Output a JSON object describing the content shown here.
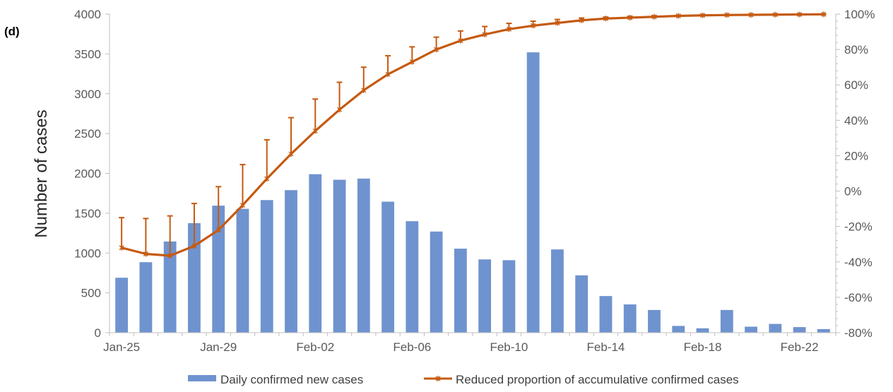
{
  "chart_data": {
    "type": "bar",
    "panel_label": "(d)",
    "title": "",
    "xlabel": "",
    "ylabel": "Number of cases",
    "ylim": [
      0,
      4000
    ],
    "yticks": [
      0,
      500,
      1000,
      1500,
      2000,
      2500,
      3000,
      3500,
      4000
    ],
    "y2lim": [
      -80,
      100
    ],
    "y2ticks": [
      -80,
      -60,
      -40,
      -20,
      0,
      20,
      40,
      60,
      80,
      100
    ],
    "y2tick_labels": [
      "-80%",
      "-60%",
      "-40%",
      "-20%",
      "0%",
      "20%",
      "40%",
      "60%",
      "80%",
      "100%"
    ],
    "categories": [
      "Jan-25",
      "Jan-26",
      "Jan-27",
      "Jan-28",
      "Jan-29",
      "Jan-30",
      "Jan-31",
      "Feb-01",
      "Feb-02",
      "Feb-03",
      "Feb-04",
      "Feb-05",
      "Feb-06",
      "Feb-07",
      "Feb-08",
      "Feb-09",
      "Feb-10",
      "Feb-11",
      "Feb-12",
      "Feb-13",
      "Feb-14",
      "Feb-15",
      "Feb-16",
      "Feb-17",
      "Feb-18",
      "Feb-19",
      "Feb-20",
      "Feb-21",
      "Feb-22",
      "Feb-23"
    ],
    "xtick_labels": [
      {
        "index": 0,
        "label": "Jan-25"
      },
      {
        "index": 4,
        "label": "Jan-29"
      },
      {
        "index": 8,
        "label": "Feb-02"
      },
      {
        "index": 12,
        "label": "Feb-06"
      },
      {
        "index": 16,
        "label": "Feb-10"
      },
      {
        "index": 20,
        "label": "Feb-14"
      },
      {
        "index": 24,
        "label": "Feb-18"
      },
      {
        "index": 28,
        "label": "Feb-22"
      }
    ],
    "legend_position": "bottom",
    "series": [
      {
        "name": "Daily confirmed new cases",
        "type": "bar",
        "axis": "left",
        "color": "#6f93cf",
        "values": [
          690,
          885,
          1145,
          1375,
          1595,
          1555,
          1665,
          1790,
          1990,
          1920,
          1935,
          1645,
          1400,
          1270,
          1055,
          920,
          910,
          3520,
          1045,
          720,
          460,
          355,
          285,
          85,
          55,
          285,
          75,
          110,
          70,
          45
        ]
      },
      {
        "name": "Reduced proportion of accumulative confirmed cases",
        "type": "line",
        "axis": "right",
        "unit": "%",
        "color": "#c55a11",
        "values": [
          -32,
          -35.5,
          -36.5,
          -31,
          -22,
          -8,
          7,
          21,
          34,
          46,
          57,
          66,
          73,
          80,
          85,
          88.5,
          91.5,
          93.5,
          95,
          96.5,
          97.5,
          98,
          98.5,
          99,
          99.3,
          99.5,
          99.6,
          99.7,
          99.8,
          99.9
        ],
        "error_upper": [
          -15,
          -15.5,
          -14,
          -7,
          2.5,
          15,
          29,
          41.5,
          52,
          61.5,
          70,
          76.5,
          81.5,
          87,
          90.5,
          93,
          94.8,
          96,
          97,
          97.8,
          98.3,
          98.7,
          99,
          99.3,
          99.5,
          99.6,
          99.7,
          99.8,
          99.9,
          99.9
        ]
      }
    ]
  }
}
